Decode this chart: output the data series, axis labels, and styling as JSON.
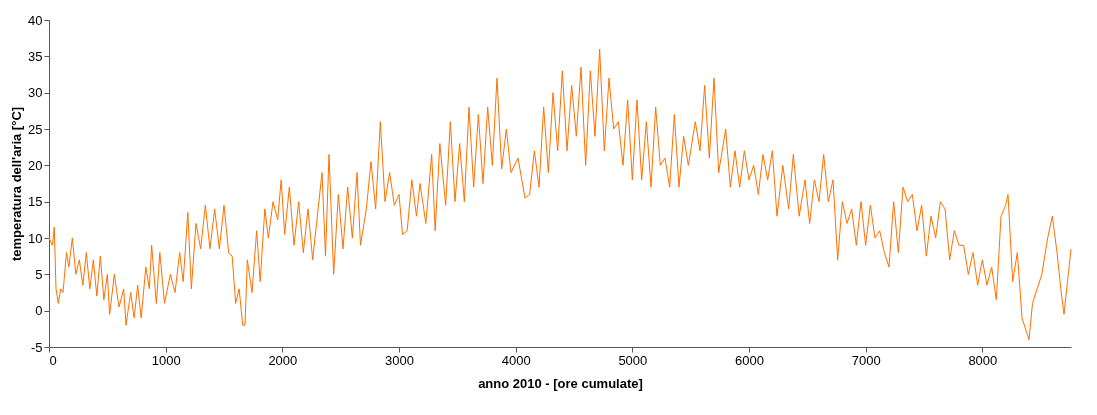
{
  "chart_data": {
    "type": "line",
    "xlabel": "anno 2010 - [ore cumulate]",
    "ylabel": "temperatura dell'aria [°C]",
    "xlim": [
      0,
      8760
    ],
    "xticks": [
      0,
      1000,
      2000,
      3000,
      4000,
      5000,
      6000,
      7000,
      8000
    ],
    "ylim": [
      -5,
      40
    ],
    "yticks": [
      -5,
      0,
      5,
      10,
      15,
      20,
      25,
      30,
      35,
      40
    ],
    "grid": false,
    "marker": "none",
    "line_style": "solid",
    "series": [
      {
        "color": "#ff7000",
        "x": [
          0,
          30,
          45,
          60,
          80,
          100,
          120,
          150,
          170,
          200,
          230,
          260,
          290,
          320,
          350,
          380,
          410,
          440,
          470,
          500,
          520,
          560,
          600,
          640,
          660,
          700,
          730,
          760,
          790,
          830,
          860,
          880,
          920,
          950,
          990,
          1040,
          1080,
          1120,
          1150,
          1190,
          1220,
          1260,
          1300,
          1340,
          1380,
          1420,
          1460,
          1500,
          1540,
          1570,
          1600,
          1630,
          1660,
          1680,
          1700,
          1740,
          1780,
          1810,
          1850,
          1880,
          1920,
          1960,
          1990,
          2020,
          2060,
          2100,
          2140,
          2180,
          2220,
          2260,
          2300,
          2340,
          2370,
          2400,
          2440,
          2480,
          2520,
          2560,
          2600,
          2640,
          2670,
          2720,
          2760,
          2800,
          2840,
          2880,
          2920,
          2960,
          3000,
          3030,
          3070,
          3110,
          3150,
          3180,
          3230,
          3280,
          3310,
          3350,
          3400,
          3440,
          3480,
          3520,
          3560,
          3600,
          3640,
          3680,
          3720,
          3760,
          3800,
          3840,
          3880,
          3920,
          3960,
          4020,
          4080,
          4120,
          4160,
          4200,
          4240,
          4280,
          4320,
          4360,
          4400,
          4440,
          4480,
          4520,
          4560,
          4600,
          4640,
          4680,
          4720,
          4760,
          4800,
          4840,
          4880,
          4920,
          4960,
          5000,
          5040,
          5080,
          5120,
          5160,
          5200,
          5240,
          5280,
          5320,
          5360,
          5400,
          5440,
          5480,
          5540,
          5580,
          5620,
          5660,
          5700,
          5740,
          5800,
          5840,
          5880,
          5920,
          5960,
          6000,
          6040,
          6080,
          6120,
          6160,
          6200,
          6240,
          6290,
          6340,
          6380,
          6430,
          6480,
          6520,
          6560,
          6600,
          6640,
          6680,
          6720,
          6760,
          6800,
          6840,
          6880,
          6920,
          6960,
          7000,
          7040,
          7080,
          7120,
          7160,
          7200,
          7240,
          7280,
          7320,
          7360,
          7400,
          7440,
          7480,
          7520,
          7560,
          7600,
          7640,
          7680,
          7720,
          7760,
          7800,
          7840,
          7880,
          7920,
          7960,
          8000,
          8040,
          8080,
          8120,
          8160,
          8200,
          8220,
          8260,
          8300,
          8340,
          8380,
          8400,
          8430,
          8470,
          8510,
          8560,
          8600,
          8640,
          8680,
          8700,
          8730,
          8760
        ],
        "values": [
          10,
          9,
          11.5,
          3,
          1,
          3,
          2.5,
          8,
          6,
          10,
          5,
          7,
          3.5,
          8,
          3,
          7,
          2,
          7.5,
          1.5,
          5,
          -0.5,
          5,
          0.5,
          3,
          -2,
          2.5,
          -1,
          3.5,
          -1,
          6,
          3,
          9,
          1,
          8,
          1,
          5,
          2.5,
          8,
          4,
          13.5,
          3,
          12,
          8.5,
          14.5,
          8.5,
          14,
          8.5,
          14.5,
          8,
          7.5,
          1,
          3,
          -2,
          -2,
          7,
          2.5,
          11,
          4,
          14,
          10,
          15,
          12.5,
          18,
          10.5,
          17,
          9,
          15,
          8,
          14,
          7,
          13,
          19,
          7.5,
          21.5,
          5,
          16,
          8.5,
          17,
          10,
          19,
          9,
          14,
          20.5,
          14,
          26,
          15,
          19,
          14.5,
          16,
          10.5,
          11,
          18,
          13,
          17.5,
          12,
          21.5,
          11,
          23,
          14.5,
          26,
          15,
          23,
          15,
          28,
          17,
          27,
          17.5,
          28,
          20,
          32,
          19.5,
          25,
          19,
          21,
          15.5,
          16,
          22,
          17,
          28,
          19,
          30,
          22,
          33,
          22,
          31,
          24,
          33.5,
          20,
          33,
          24,
          36,
          22,
          32,
          25,
          26,
          20,
          29,
          18,
          29,
          18,
          26,
          17,
          28,
          20,
          21,
          17,
          27,
          17,
          24,
          20,
          26,
          22,
          31,
          21,
          32,
          19,
          25,
          17,
          22,
          17,
          22,
          18,
          20,
          16,
          21.5,
          18,
          22,
          13,
          20,
          14,
          21.5,
          13,
          18,
          12,
          18,
          15,
          21.5,
          15,
          18,
          7,
          15,
          12,
          14,
          9,
          15,
          9,
          14.5,
          10,
          11,
          8,
          6,
          15,
          8,
          17,
          15,
          16,
          11,
          14.5,
          7.5,
          13,
          10,
          15,
          14,
          7,
          11,
          9,
          9,
          5,
          8,
          3.5,
          7,
          3.5,
          6,
          1.5,
          13,
          14.5,
          16,
          4,
          8,
          -1,
          -3,
          -4,
          1,
          3,
          5,
          10,
          13,
          8,
          2,
          -0.5,
          4,
          8.5
        ]
      }
    ]
  }
}
